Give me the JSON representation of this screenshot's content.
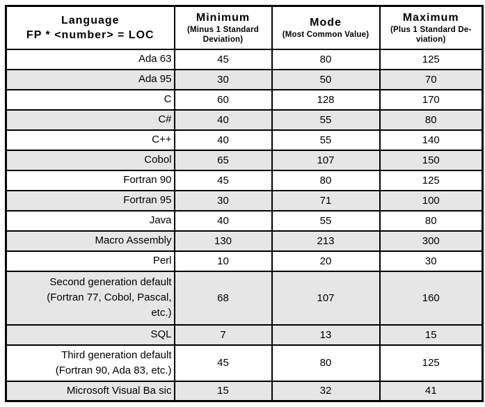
{
  "table": {
    "header": {
      "language": {
        "title": "Language",
        "subtitle": "FP * <number> = LOC"
      },
      "minimum": {
        "title": "Minimum",
        "subtitle": "(Minus 1 Standard\nDeviation)"
      },
      "mode": {
        "title": "Mode",
        "subtitle": "(Most Common Value)"
      },
      "maximum": {
        "title": "Maximum",
        "subtitle": "(Plus 1 Standard De-\nviation)"
      }
    },
    "rows": [
      {
        "language": "Ada 63",
        "min": "45",
        "mode": "80",
        "max": "125",
        "shaded": false
      },
      {
        "language": "Ada 95",
        "min": "30",
        "mode": "50",
        "max": "70",
        "shaded": true
      },
      {
        "language": "C",
        "min": "60",
        "mode": "128",
        "max": "170",
        "shaded": false
      },
      {
        "language": "C#",
        "min": "40",
        "mode": "55",
        "max": "80",
        "shaded": true
      },
      {
        "language": "C++",
        "min": "40",
        "mode": "55",
        "max": "140",
        "shaded": false
      },
      {
        "language": "Cobol",
        "min": "65",
        "mode": "107",
        "max": "150",
        "shaded": true
      },
      {
        "language": "Fortran 90",
        "min": "45",
        "mode": "80",
        "max": "125",
        "shaded": false
      },
      {
        "language": "Fortran 95",
        "min": "30",
        "mode": "71",
        "max": "100",
        "shaded": true
      },
      {
        "language": "Java",
        "min": "40",
        "mode": "55",
        "max": "80",
        "shaded": false
      },
      {
        "language": "Macro Assembly",
        "min": "130",
        "mode": "213",
        "max": "300",
        "shaded": true
      },
      {
        "language": "Perl",
        "min": "10",
        "mode": "20",
        "max": "30",
        "shaded": false
      },
      {
        "language": "Second generation default\n(Fortran 77, Cobol, Pascal,\netc.)",
        "min": "68",
        "mode": "107",
        "max": "160",
        "shaded": true
      },
      {
        "language": "SQL",
        "min": "7",
        "mode": "13",
        "max": "15",
        "shaded": true
      },
      {
        "language": "Third generation default\n(Fortran 90, Ada 83, etc.)",
        "min": "45",
        "mode": "80",
        "max": "125",
        "shaded": false
      },
      {
        "language": "Microsoft Visual Ba sic",
        "min": "15",
        "mode": "32",
        "max": "41",
        "shaded": true
      }
    ]
  },
  "colors": {
    "row_shade": "#e6e6e6",
    "border": "#000000",
    "background": "#ffffff"
  }
}
